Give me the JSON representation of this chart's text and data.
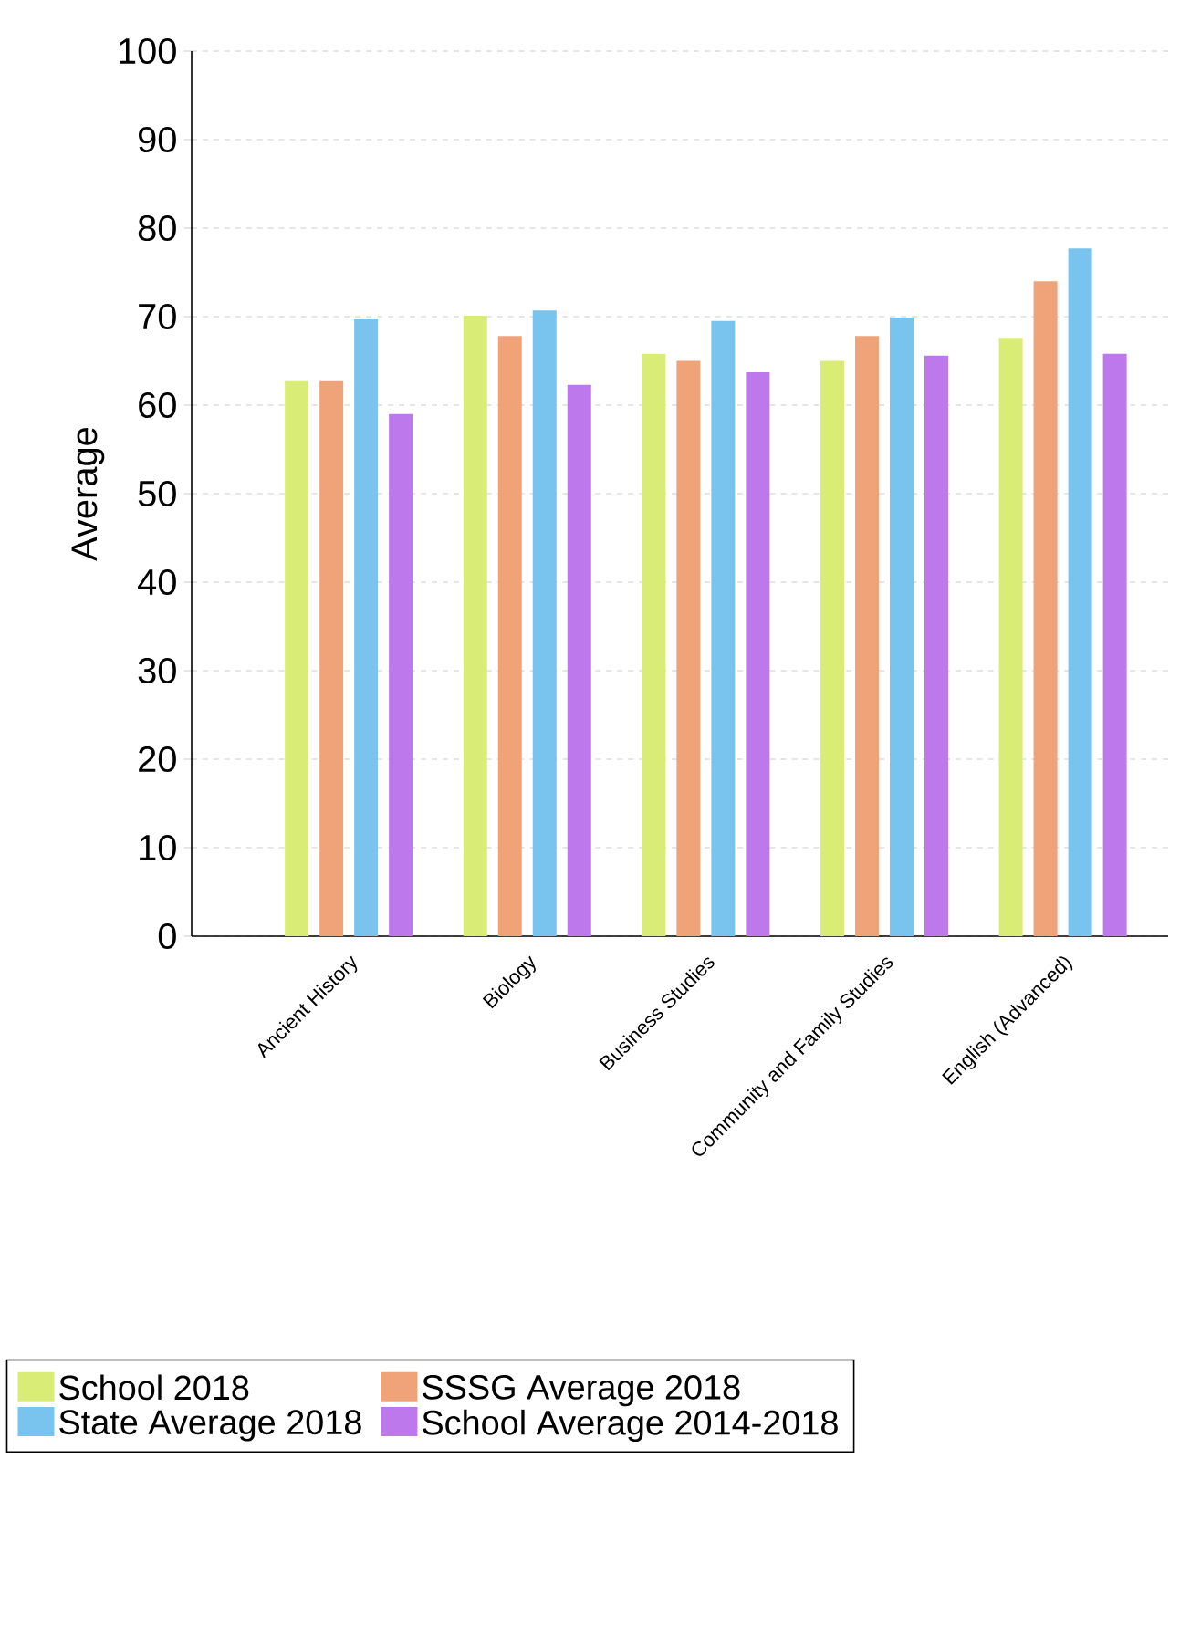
{
  "chart_data": {
    "type": "bar",
    "ylabel": "Average",
    "categories": [
      "Ancient History",
      "Biology",
      "Business Studies",
      "Community and Family Studies",
      "English (Advanced)"
    ],
    "series": [
      {
        "name": "School 2018",
        "color": "#d9ed76",
        "values": [
          62.7,
          70.1,
          65.8,
          65.0,
          67.6
        ]
      },
      {
        "name": "SSSG Average 2018",
        "color": "#f0a278",
        "values": [
          62.7,
          67.8,
          65.0,
          67.8,
          74.0
        ]
      },
      {
        "name": "State Average 2018",
        "color": "#78c4ee",
        "values": [
          69.7,
          70.7,
          69.5,
          69.9,
          77.7
        ]
      },
      {
        "name": "School Average 2014-2018",
        "color": "#bd79ec",
        "values": [
          59.0,
          62.3,
          63.7,
          65.6,
          65.8
        ]
      }
    ],
    "ylim": [
      0,
      100
    ],
    "yticks": [
      0,
      10,
      20,
      30,
      40,
      50,
      60,
      70,
      80,
      90,
      100
    ],
    "grid": "y",
    "legend": "bottom"
  }
}
